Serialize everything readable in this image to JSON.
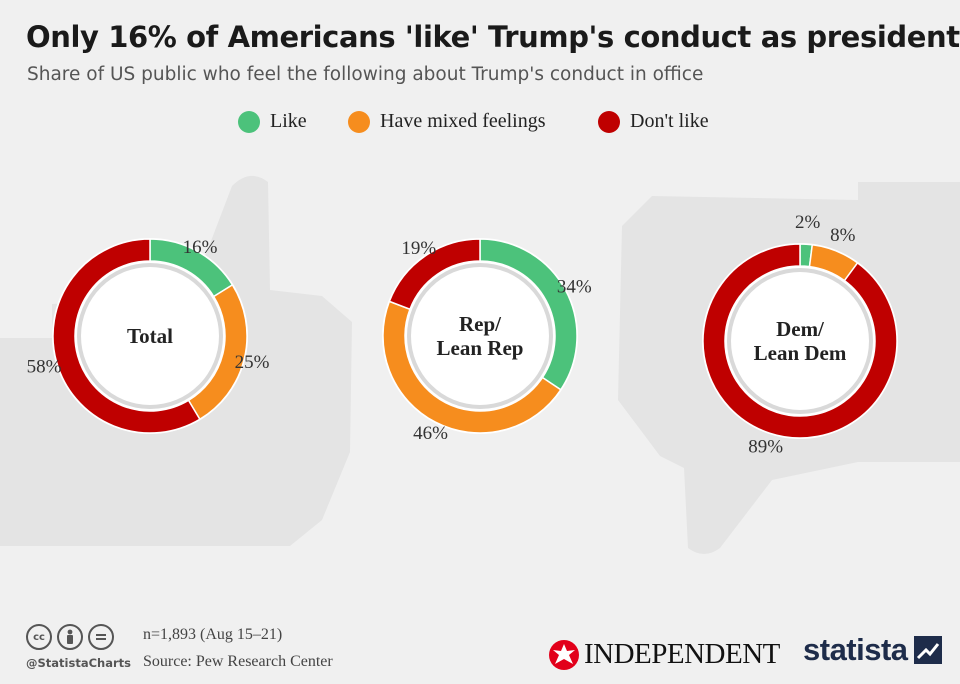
{
  "title": "Only 16% of Americans 'like' Trump's conduct as president",
  "subtitle": "Share of US public who feel the following about Trump's conduct in office",
  "legend": [
    {
      "label": "Like",
      "color": "#4cc27b"
    },
    {
      "label": "Have mixed feelings",
      "color": "#f68d1e"
    },
    {
      "label": "Don't like",
      "color": "#bf0000"
    }
  ],
  "chart_data": {
    "type": "pie",
    "variant": "donut",
    "categories": [
      "Like",
      "Have mixed feelings",
      "Don't like"
    ],
    "colors": [
      "#4cc27b",
      "#f68d1e",
      "#bf0000"
    ],
    "unit": "%",
    "charts": [
      {
        "label": [
          "Total"
        ],
        "values": [
          16,
          25,
          58
        ]
      },
      {
        "label": [
          "Rep/",
          "Lean Rep"
        ],
        "values": [
          34,
          46,
          19
        ]
      },
      {
        "label": [
          "Dem/",
          "Lean Dem"
        ],
        "values": [
          2,
          8,
          89
        ]
      }
    ]
  },
  "footer": {
    "note": "n=1,893 (Aug 15–21)",
    "source": "Source: Pew Research Center",
    "handle": "@StatistaCharts",
    "cc_icons": [
      "cc-icon",
      "by-icon",
      "nd-icon"
    ],
    "partner_logo": "INDEPENDENT",
    "brand_logo": "statista"
  }
}
